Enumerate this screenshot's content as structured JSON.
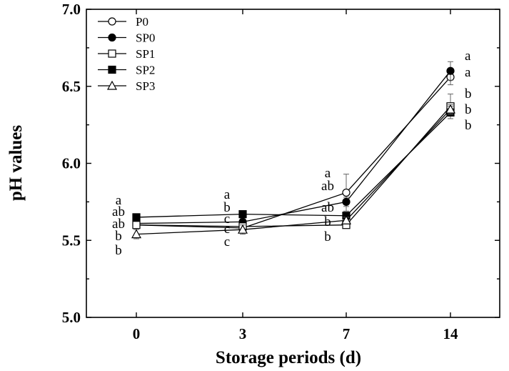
{
  "chart_data": {
    "type": "line",
    "xlabel": "Storage periods (d)",
    "ylabel": "pH values",
    "categories": [
      "0",
      "3",
      "7",
      "14"
    ],
    "ylim": [
      5.0,
      7.0
    ],
    "yticks": [
      "5.0",
      "5.5",
      "6.0",
      "6.5",
      "7.0"
    ],
    "yticks_values": [
      5.0,
      5.5,
      6.0,
      6.5,
      7.0
    ],
    "legend_position": "top-left",
    "grid": false,
    "series": [
      {
        "name": "P0",
        "marker": "circle-open",
        "values": [
          5.6,
          5.58,
          5.81,
          6.56
        ],
        "errors": [
          0.02,
          0.02,
          0.12,
          0.05
        ]
      },
      {
        "name": "SP0",
        "marker": "circle-filled",
        "values": [
          5.61,
          5.62,
          5.75,
          6.6
        ],
        "errors": [
          0.01,
          0.02,
          0.03,
          0.06
        ]
      },
      {
        "name": "SP1",
        "marker": "square-open",
        "values": [
          5.6,
          5.59,
          5.6,
          6.37
        ],
        "errors": [
          0.01,
          0.01,
          0.02,
          0.08
        ]
      },
      {
        "name": "SP2",
        "marker": "square-filled",
        "values": [
          5.65,
          5.67,
          5.66,
          6.33
        ],
        "errors": [
          0.01,
          0.01,
          0.02,
          0.04
        ]
      },
      {
        "name": "SP3",
        "marker": "triangle-open",
        "values": [
          5.54,
          5.57,
          5.63,
          6.35
        ],
        "errors": [
          0.03,
          0.03,
          0.02,
          0.03
        ]
      }
    ],
    "annotations": [
      {
        "category": 0,
        "labels": [
          "a",
          "ab",
          "ab",
          "b",
          "b"
        ]
      },
      {
        "category": 1,
        "labels": [
          "a",
          "b",
          "c",
          "c",
          "c"
        ]
      },
      {
        "category": 2,
        "labels": [
          "a",
          "ab",
          "ab",
          "b",
          "b"
        ]
      },
      {
        "category": 3,
        "labels": [
          "a",
          "a",
          "b",
          "b",
          "b"
        ]
      }
    ]
  }
}
